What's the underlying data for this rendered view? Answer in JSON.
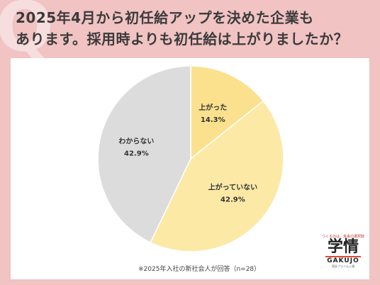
{
  "title": {
    "line1": "2025年4月から初任給アップを決めた企業も",
    "line2": "あります。採用時よりも初任給は上がりましたか？"
  },
  "chart_data": {
    "type": "pie",
    "start_angle_deg": 0,
    "slices": [
      {
        "label": "上がった",
        "percent_label": "14.3%",
        "value": 14.3,
        "color": "#fbe18e"
      },
      {
        "label": "上がっていない",
        "percent_label": "42.9%",
        "value": 42.9,
        "color": "#fce9a6"
      },
      {
        "label": "わからない",
        "percent_label": "42.9%",
        "value": 42.9,
        "color": "#dcdcdc"
      }
    ],
    "stroke": "#ffffff"
  },
  "note": "※2025年入社の新社会人が回答（n=28）",
  "logo": {
    "tagline": "つくるのは、未来の選択肢",
    "main": "学情",
    "sub": "GAKUJO",
    "small": "東証プライム上場"
  }
}
